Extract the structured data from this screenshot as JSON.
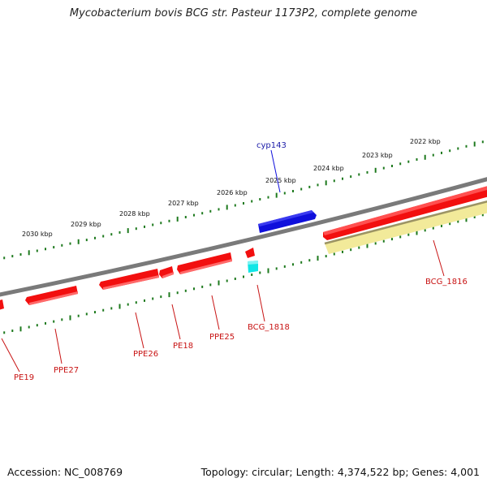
{
  "title": "Mycobacterium bovis BCG str. Pasteur 1173P2, complete genome",
  "accession": "Accession: NC_008769",
  "summary": "Topology: circular; Length: 4,374,522 bp; Genes: 4,001",
  "colors": {
    "backbone": "#7a7a7a",
    "tick": "#1e7a1e",
    "gene_forward_label": "#1a1aa8",
    "gene_reverse_label": "#c81414",
    "red_feature": "#f20f0f",
    "blue_feature": "#0f0fdc",
    "cyan_feature": "#10e6e6",
    "yellow_feature": "#f2ea9a"
  },
  "kbp_labels": [
    "2030 kbp",
    "2029 kbp",
    "2028 kbp",
    "2027 kbp",
    "2026 kbp",
    "2025 kbp",
    "2024 kbp",
    "2023 kbp",
    "2022 kbp"
  ],
  "gene_labels": {
    "cyp143": "cyp143",
    "bcg_1816": "BCG_1816",
    "bcg_1818": "BCG_1818",
    "ppe25": "PPE25",
    "pe18": "PE18",
    "ppe26": "PPE26",
    "ppe27": "PPE27",
    "pe19": "PE19"
  }
}
